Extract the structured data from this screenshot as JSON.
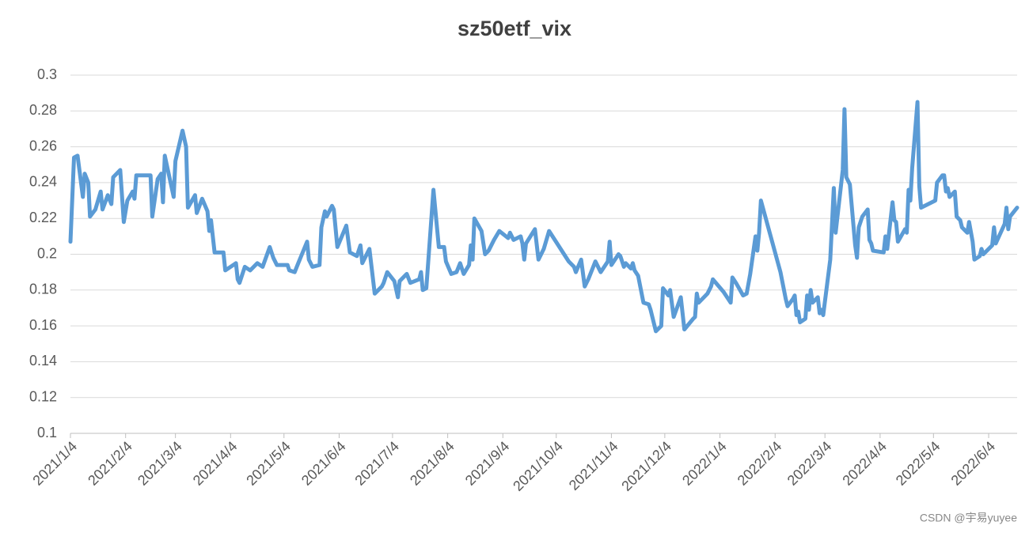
{
  "chart_data": {
    "type": "line",
    "title": "sz50etf_vix",
    "x": [
      "2021/1/4",
      "2021/1/6",
      "2021/1/8",
      "2021/1/11",
      "2021/1/12",
      "2021/1/14",
      "2021/1/15",
      "2021/1/18",
      "2021/1/21",
      "2021/1/22",
      "2021/1/25",
      "2021/1/27",
      "2021/1/28",
      "2021/2/1",
      "2021/2/3",
      "2021/2/5",
      "2021/2/8",
      "2021/2/9",
      "2021/2/10",
      "2021/2/18",
      "2021/2/19",
      "2021/2/22",
      "2021/2/24",
      "2021/2/25",
      "2021/2/26",
      "2021/3/3",
      "2021/3/4",
      "2021/3/8",
      "2021/3/10",
      "2021/3/11",
      "2021/3/15",
      "2021/3/16",
      "2021/3/19",
      "2021/3/22",
      "2021/3/23",
      "2021/3/24",
      "2021/3/26",
      "2021/3/31",
      "2021/4/1",
      "2021/4/7",
      "2021/4/8",
      "2021/4/9",
      "2021/4/12",
      "2021/4/15",
      "2021/4/19",
      "2021/4/22",
      "2021/4/26",
      "2021/4/28",
      "2021/4/30",
      "2021/5/6",
      "2021/5/7",
      "2021/5/10",
      "2021/5/12",
      "2021/5/17",
      "2021/5/18",
      "2021/5/20",
      "2021/5/24",
      "2021/5/25",
      "2021/5/27",
      "2021/5/28",
      "2021/5/31",
      "2021/6/1",
      "2021/6/3",
      "2021/6/8",
      "2021/6/10",
      "2021/6/14",
      "2021/6/16",
      "2021/6/17",
      "2021/6/21",
      "2021/6/24",
      "2021/6/28",
      "2021/6/29",
      "2021/7/1",
      "2021/7/5",
      "2021/7/7",
      "2021/7/8",
      "2021/7/12",
      "2021/7/14",
      "2021/7/19",
      "2021/7/20",
      "2021/7/21",
      "2021/7/23",
      "2021/7/27",
      "2021/7/30",
      "2021/8/2",
      "2021/8/3",
      "2021/8/6",
      "2021/8/9",
      "2021/8/11",
      "2021/8/13",
      "2021/8/16",
      "2021/8/17",
      "2021/8/18",
      "2021/8/19",
      "2021/8/23",
      "2021/8/25",
      "2021/8/27",
      "2021/8/30",
      "2021/9/2",
      "2021/9/7",
      "2021/9/8",
      "2021/9/10",
      "2021/9/14",
      "2021/9/15",
      "2021/9/16",
      "2021/9/17",
      "2021/9/22",
      "2021/9/24",
      "2021/9/27",
      "2021/9/30",
      "2021/10/11",
      "2021/10/14",
      "2021/10/15",
      "2021/10/18",
      "2021/10/20",
      "2021/10/22",
      "2021/10/26",
      "2021/10/29",
      "2021/11/2",
      "2021/11/3",
      "2021/11/4",
      "2021/11/8",
      "2021/11/9",
      "2021/11/11",
      "2021/11/12",
      "2021/11/15",
      "2021/11/16",
      "2021/11/17",
      "2021/11/19",
      "2021/11/22",
      "2021/11/25",
      "2021/11/26",
      "2021/11/29",
      "2021/12/2",
      "2021/12/3",
      "2021/12/6",
      "2021/12/7",
      "2021/12/9",
      "2021/12/13",
      "2021/12/15",
      "2021/12/20",
      "2021/12/21",
      "2021/12/22",
      "2021/12/23",
      "2021/12/28",
      "2021/12/30",
      "2021/12/31",
      "2022/1/6",
      "2022/1/10",
      "2022/1/11",
      "2022/1/13",
      "2022/1/17",
      "2022/1/19",
      "2022/1/21",
      "2022/1/24",
      "2022/1/25",
      "2022/1/26",
      "2022/1/27",
      "2022/2/7",
      "2022/2/10",
      "2022/2/11",
      "2022/2/14",
      "2022/2/15",
      "2022/2/16",
      "2022/2/17",
      "2022/2/18",
      "2022/2/21",
      "2022/2/22",
      "2022/2/23",
      "2022/2/24",
      "2022/2/25",
      "2022/2/28",
      "2022/3/1",
      "2022/3/2",
      "2022/3/3",
      "2022/3/7",
      "2022/3/9",
      "2022/3/10",
      "2022/3/14",
      "2022/3/15",
      "2022/3/16",
      "2022/3/18",
      "2022/3/21",
      "2022/3/22",
      "2022/3/23",
      "2022/3/25",
      "2022/3/28",
      "2022/3/29",
      "2022/3/30",
      "2022/3/31",
      "2022/4/6",
      "2022/4/7",
      "2022/4/8",
      "2022/4/11",
      "2022/4/12",
      "2022/4/13",
      "2022/4/14",
      "2022/4/18",
      "2022/4/19",
      "2022/4/20",
      "2022/4/21",
      "2022/4/22",
      "2022/4/25",
      "2022/4/26",
      "2022/4/27",
      "2022/5/5",
      "2022/5/6",
      "2022/5/9",
      "2022/5/10",
      "2022/5/11",
      "2022/5/12",
      "2022/5/13",
      "2022/5/16",
      "2022/5/17",
      "2022/5/19",
      "2022/5/20",
      "2022/5/23",
      "2022/5/24",
      "2022/5/26",
      "2022/5/27",
      "2022/5/30",
      "2022/5/31",
      "2022/6/1",
      "2022/6/6",
      "2022/6/7",
      "2022/6/8",
      "2022/6/13",
      "2022/6/14",
      "2022/6/15",
      "2022/6/16",
      "2022/6/20"
    ],
    "series": [
      {
        "name": "sz50etf_vix",
        "color": "#5b9bd5",
        "values": [
          0.207,
          0.254,
          0.255,
          0.232,
          0.245,
          0.24,
          0.221,
          0.225,
          0.235,
          0.225,
          0.233,
          0.228,
          0.243,
          0.247,
          0.218,
          0.23,
          0.235,
          0.231,
          0.244,
          0.244,
          0.221,
          0.242,
          0.245,
          0.229,
          0.255,
          0.232,
          0.252,
          0.269,
          0.26,
          0.226,
          0.233,
          0.223,
          0.231,
          0.224,
          0.213,
          0.219,
          0.201,
          0.201,
          0.191,
          0.195,
          0.186,
          0.184,
          0.193,
          0.191,
          0.195,
          0.193,
          0.204,
          0.198,
          0.194,
          0.194,
          0.191,
          0.19,
          0.195,
          0.207,
          0.197,
          0.193,
          0.194,
          0.215,
          0.224,
          0.221,
          0.227,
          0.225,
          0.204,
          0.216,
          0.201,
          0.199,
          0.205,
          0.195,
          0.203,
          0.178,
          0.182,
          0.184,
          0.19,
          0.185,
          0.176,
          0.185,
          0.189,
          0.184,
          0.186,
          0.19,
          0.18,
          0.181,
          0.236,
          0.204,
          0.204,
          0.196,
          0.189,
          0.19,
          0.195,
          0.189,
          0.194,
          0.205,
          0.197,
          0.22,
          0.213,
          0.2,
          0.202,
          0.208,
          0.213,
          0.209,
          0.212,
          0.208,
          0.21,
          0.206,
          0.197,
          0.206,
          0.214,
          0.197,
          0.203,
          0.213,
          0.196,
          0.193,
          0.19,
          0.197,
          0.182,
          0.186,
          0.196,
          0.19,
          0.196,
          0.207,
          0.194,
          0.2,
          0.199,
          0.193,
          0.195,
          0.192,
          0.195,
          0.191,
          0.188,
          0.173,
          0.172,
          0.169,
          0.157,
          0.16,
          0.181,
          0.177,
          0.18,
          0.165,
          0.176,
          0.158,
          0.164,
          0.165,
          0.178,
          0.173,
          0.178,
          0.182,
          0.186,
          0.179,
          0.173,
          0.187,
          0.184,
          0.177,
          0.178,
          0.189,
          0.21,
          0.202,
          0.212,
          0.23,
          0.19,
          0.175,
          0.171,
          0.175,
          0.177,
          0.166,
          0.168,
          0.162,
          0.164,
          0.177,
          0.169,
          0.18,
          0.173,
          0.176,
          0.167,
          0.169,
          0.166,
          0.197,
          0.237,
          0.212,
          0.247,
          0.281,
          0.243,
          0.239,
          0.205,
          0.198,
          0.215,
          0.221,
          0.225,
          0.208,
          0.206,
          0.202,
          0.201,
          0.21,
          0.203,
          0.229,
          0.219,
          0.218,
          0.207,
          0.214,
          0.212,
          0.236,
          0.23,
          0.248,
          0.285,
          0.238,
          0.226,
          0.23,
          0.24,
          0.244,
          0.244,
          0.235,
          0.237,
          0.232,
          0.235,
          0.221,
          0.219,
          0.215,
          0.212,
          0.218,
          0.207,
          0.197,
          0.199,
          0.203,
          0.2,
          0.205,
          0.215,
          0.206,
          0.217,
          0.226,
          0.214,
          0.221,
          0.226
        ]
      }
    ],
    "xlim": [
      "2021/1/4",
      "2022/6/20"
    ],
    "xticks": [
      "2021/1/4",
      "2021/2/4",
      "2021/3/4",
      "2021/4/4",
      "2021/5/4",
      "2021/6/4",
      "2021/7/4",
      "2021/8/4",
      "2021/9/4",
      "2021/10/4",
      "2021/11/4",
      "2021/12/4",
      "2022/1/4",
      "2022/2/4",
      "2022/3/4",
      "2022/4/4",
      "2022/5/4",
      "2022/6/4"
    ],
    "ylim": [
      0.1,
      0.3
    ],
    "yticks": [
      0.1,
      0.12,
      0.14,
      0.16,
      0.18,
      0.2,
      0.22,
      0.24,
      0.26,
      0.28,
      0.3
    ],
    "grid": true,
    "watermark": "CSDN @宇易yuyee"
  }
}
